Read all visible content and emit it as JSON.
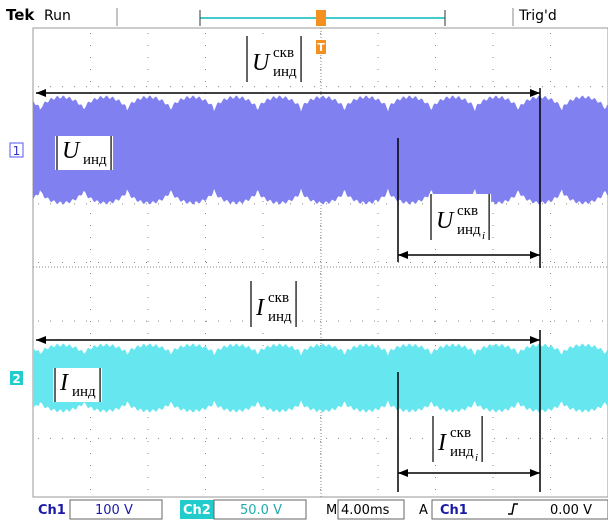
{
  "header": {
    "brand": "Tek",
    "status": "Run",
    "trigger": "Trig'd"
  },
  "trigger_marker": "T",
  "channel_markers": [
    "1",
    "2"
  ],
  "annotations": [
    {
      "symbol": "U",
      "sup": "скв",
      "sub": "инд"
    },
    {
      "symbol": "U",
      "sub": "инд"
    },
    {
      "symbol": "U",
      "sup": "скв",
      "sub": "инд",
      "subsub": "i"
    },
    {
      "symbol": "I",
      "sup": "скв",
      "sub": "инд"
    },
    {
      "symbol": "I",
      "sub": "инд"
    },
    {
      "symbol": "I",
      "sup": "скв",
      "sub": "инд",
      "subsub": "i"
    }
  ],
  "footer": {
    "ch1": "Ch1",
    "ch1_scale": "100 V",
    "ch2": "Ch2",
    "ch2_scale": "50.0 V",
    "timebase_prefix": "M",
    "timebase": "4.00ms",
    "trigger_mode": "A",
    "trigger_source": "Ch1",
    "trigger_level": "0.00 V"
  }
}
